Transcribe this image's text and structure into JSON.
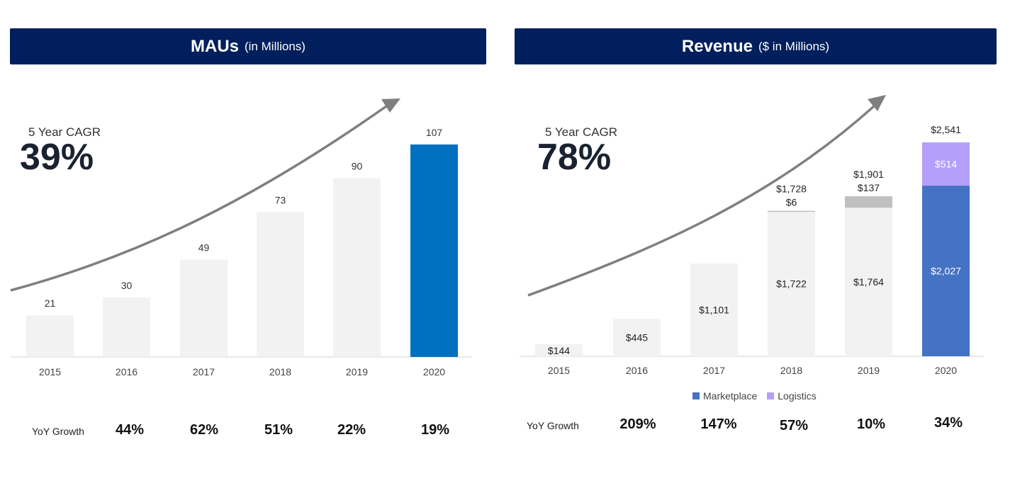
{
  "colors": {
    "banner": "#001f5c",
    "bar_gray": "#f2f2f2",
    "bar_highlight": "#0070c0",
    "marketplace": "#4472c4",
    "logistics": "#b4a0fa",
    "logistics_gray": "#c0c0c0",
    "arrow": "#7f7f7f"
  },
  "left": {
    "title_main": "MAUs",
    "title_sub": "(in Millions)",
    "cagr_label": "5 Year CAGR",
    "cagr_value": "39%",
    "yoy_label": "YoY Growth",
    "yoy": [
      "44%",
      "62%",
      "51%",
      "22%",
      "19%"
    ]
  },
  "right": {
    "title_main": "Revenue",
    "title_sub": "($ in Millions)",
    "cagr_label": "5 Year CAGR",
    "cagr_value": "78%",
    "yoy_label": "YoY Growth",
    "yoy": [
      "209%",
      "147%",
      "57%",
      "10%",
      "34%"
    ],
    "legend": [
      {
        "name": "Marketplace",
        "color": "#4472c4"
      },
      {
        "name": "Logistics",
        "color": "#b4a0fa"
      }
    ]
  },
  "chart_data": [
    {
      "type": "bar",
      "title": "MAUs (in Millions)",
      "categories": [
        "2015",
        "2016",
        "2017",
        "2018",
        "2019",
        "2020"
      ],
      "values": [
        21,
        30,
        49,
        73,
        90,
        107
      ],
      "labels": [
        "21",
        "30",
        "49",
        "73",
        "90",
        "107"
      ],
      "ylim": [
        0,
        107
      ],
      "highlight_category": "2020",
      "grid": false
    },
    {
      "type": "bar",
      "stacked": true,
      "title": "Revenue ($ in Millions)",
      "categories": [
        "2015",
        "2016",
        "2017",
        "2018",
        "2019",
        "2020"
      ],
      "series": [
        {
          "name": "Marketplace",
          "values": [
            144,
            445,
            1101,
            1722,
            1764,
            2027
          ],
          "labels": [
            "$144",
            "$445",
            "$1,101",
            "$1,722",
            "$1,764",
            "$2,027"
          ]
        },
        {
          "name": "Logistics",
          "values": [
            0,
            0,
            0,
            6,
            137,
            514
          ],
          "labels": [
            "",
            "",
            "",
            "$6",
            "$137",
            "$514"
          ]
        }
      ],
      "totals": [
        "",
        "",
        "",
        "$1,728",
        "$1,901",
        "$2,541"
      ],
      "ylim": [
        0,
        2541
      ],
      "legend_position": "bottom",
      "grid": false
    }
  ]
}
